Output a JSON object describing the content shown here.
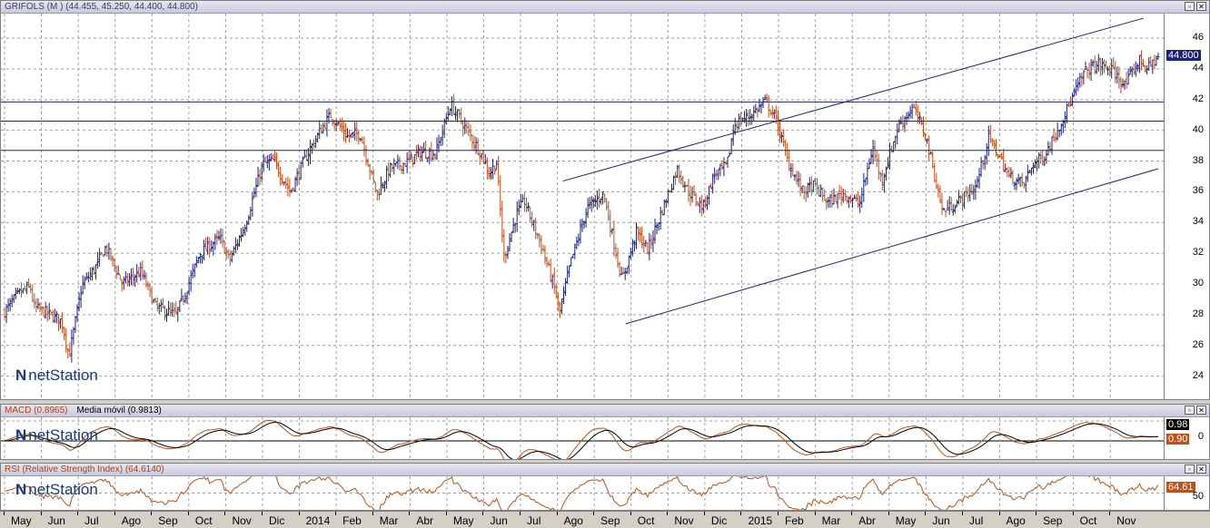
{
  "main_panel": {
    "title": "GRIFOLS (M ) (44.455, 45.250, 44.400, 44.800)",
    "last_price": "44.800",
    "logo": "netStation",
    "colors": {
      "up": "#1a237e",
      "down": "#c0501a",
      "grid": "#a0a0a0",
      "line": "#1a237e",
      "badge": "#1a237e"
    }
  },
  "macd_panel": {
    "title": "MACD (0.8965)",
    "subtitle": "Media móvil (0.9813)",
    "badge_signal": "0.98",
    "badge_macd": "0.90",
    "zero_label": "0",
    "logo": "netStation"
  },
  "rsi_panel": {
    "title": "RSI (Relative Strength Index) (64.6140)",
    "badge": "64.61",
    "level_label": "50",
    "logo": "netStation"
  },
  "window_buttons": {
    "minimize": "▫",
    "close": "✕"
  },
  "chart_data": [
    {
      "type": "bar",
      "style": "ohlc",
      "title": "GRIFOLS (M ) (44.455, 45.250, 44.400, 44.800)",
      "ylim": [
        22.5,
        47.6
      ],
      "yticks": [
        24,
        26,
        28,
        30,
        32,
        34,
        36,
        38,
        40,
        42,
        44,
        46
      ],
      "xticks": [
        "May",
        "Jun",
        "Jul",
        "Ago",
        "Sep",
        "Oct",
        "Nov",
        "Dic",
        "2014",
        "Feb",
        "Mar",
        "Abr",
        "May",
        "Jun",
        "Jul",
        "Ago",
        "Sep",
        "Oct",
        "Nov",
        "Dic",
        "2015",
        "Feb",
        "Mar",
        "Abr",
        "May",
        "Jun",
        "Jul",
        "Ago",
        "Sep",
        "Oct",
        "Nov"
      ],
      "x_range": [
        0,
        31.35
      ],
      "last_close": 44.8,
      "anchors": {
        "x": [
          0,
          0.4,
          0.7,
          0.8,
          1.15,
          1.55,
          1.75,
          2.1,
          2.45,
          2.75,
          3.2,
          3.7,
          4.1,
          4.65,
          4.9,
          5.3,
          5.85,
          6.1,
          6.55,
          7.0,
          7.3,
          7.75,
          8.2,
          8.55,
          8.85,
          9.3,
          9.65,
          10.1,
          10.45,
          10.9,
          11.3,
          11.7,
          12.1,
          12.6,
          12.95,
          13.15,
          13.35,
          13.55,
          13.9,
          14.1,
          14.55,
          14.95,
          15.05,
          15.35,
          15.8,
          16.25,
          16.75,
          17.15,
          17.45,
          18.25,
          18.55,
          18.95,
          19.25,
          19.6,
          19.8,
          20.25,
          20.65,
          20.95,
          21.25,
          21.65,
          21.95,
          22.35,
          22.75,
          23.2,
          23.55,
          23.8,
          24.25,
          24.65,
          25.0,
          25.45,
          25.95,
          26.35,
          26.7,
          26.95,
          27.25,
          27.65,
          27.9,
          28.2,
          28.6,
          28.95,
          29.3,
          29.65,
          30.05,
          30.4,
          30.8,
          31.0,
          31.3
        ],
        "close": [
          28.2,
          29.4,
          29.8,
          28.5,
          28.1,
          27.6,
          25.3,
          29.9,
          31.0,
          32.4,
          30.0,
          30.8,
          28.5,
          28.0,
          29.4,
          32.0,
          33.0,
          31.5,
          34.0,
          37.8,
          38.0,
          36.0,
          38.4,
          39.9,
          41.0,
          39.6,
          39.8,
          35.8,
          37.5,
          37.9,
          38.6,
          38.5,
          41.7,
          39.8,
          38.4,
          37.2,
          37.9,
          31.7,
          34.6,
          35.4,
          32.6,
          29.5,
          28.0,
          31.3,
          34.9,
          35.9,
          30.2,
          33.4,
          32.2,
          37.5,
          36.0,
          35.0,
          37.1,
          37.7,
          40.4,
          41.0,
          41.9,
          40.6,
          38.0,
          36.0,
          36.4,
          35.3,
          35.9,
          35.2,
          38.9,
          36.7,
          40.3,
          41.5,
          39.6,
          34.7,
          35.5,
          36.3,
          39.5,
          38.5,
          37.0,
          36.5,
          37.8,
          38.3,
          40.2,
          42.0,
          43.8,
          44.3,
          43.9,
          42.9,
          44.6,
          44.0,
          44.8
        ]
      }
    },
    {
      "type": "line",
      "title": "MACD (0.8965)",
      "series": [
        {
          "name": "MACD (0.8965)",
          "last": 0.8965
        },
        {
          "name": "Media móvil (0.9813)",
          "last": 0.9813
        }
      ],
      "zero_line": 0,
      "ylim": [
        -1.6,
        1.6
      ]
    },
    {
      "type": "line",
      "title": "RSI (Relative Strength Index) (64.6140)",
      "series": [
        {
          "name": "RSI",
          "last": 64.614
        }
      ],
      "level": 50,
      "ylim": [
        20,
        80
      ]
    }
  ]
}
